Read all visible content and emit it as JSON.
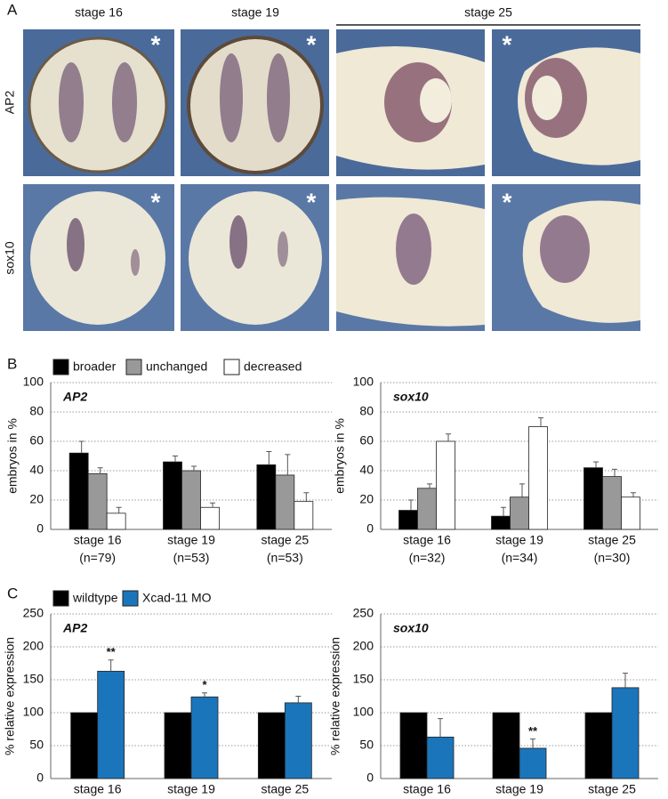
{
  "panel_labels": [
    "A",
    "B",
    "C"
  ],
  "panel_a": {
    "columns": [
      "stage 16",
      "stage 19",
      "stage 25"
    ],
    "rows": [
      "AP2",
      "sox10"
    ],
    "marker": "*"
  },
  "chart_data": [
    {
      "type": "bar",
      "subtitle": "AP2",
      "y_label": "embryos in %",
      "categories": [
        "stage 16",
        "stage 19",
        "stage 25"
      ],
      "n_labels": [
        "(n=79)",
        "(n=53)",
        "(n=53)"
      ],
      "ylim": [
        0,
        100
      ],
      "yticks": [
        0,
        20,
        40,
        60,
        80,
        100
      ],
      "grid": true,
      "series": [
        {
          "name": "broader",
          "color": "#000000",
          "values": [
            52,
            46,
            44
          ],
          "errors": [
            8,
            4,
            9
          ]
        },
        {
          "name": "unchanged",
          "color": "#999999",
          "values": [
            38,
            40,
            37
          ],
          "errors": [
            4,
            3,
            14
          ]
        },
        {
          "name": "decreased",
          "color": "#ffffff",
          "values": [
            11,
            15,
            19
          ],
          "errors": [
            4,
            3,
            6
          ]
        }
      ]
    },
    {
      "type": "bar",
      "subtitle": "sox10",
      "y_label": "embryos in %",
      "categories": [
        "stage 16",
        "stage 19",
        "stage 25"
      ],
      "n_labels": [
        "(n=32)",
        "(n=34)",
        "(n=30)"
      ],
      "ylim": [
        0,
        100
      ],
      "yticks": [
        0,
        20,
        40,
        60,
        80,
        100
      ],
      "grid": true,
      "series": [
        {
          "color": "#000000",
          "values": [
            13,
            9,
            42
          ],
          "errors": [
            7,
            6,
            4
          ]
        },
        {
          "color": "#999999",
          "values": [
            28,
            22,
            36
          ],
          "errors": [
            3,
            9,
            5
          ]
        },
        {
          "color": "#ffffff",
          "values": [
            60,
            70,
            22
          ],
          "errors": [
            5,
            6,
            3
          ]
        }
      ]
    },
    {
      "type": "bar",
      "subtitle": "AP2",
      "y_label": "% relative expression",
      "categories": [
        "stage 16",
        "stage 19",
        "stage 25"
      ],
      "ylim": [
        0,
        250
      ],
      "yticks": [
        0,
        50,
        100,
        150,
        200,
        250
      ],
      "grid": true,
      "series": [
        {
          "name": "wildtype",
          "color": "#000000",
          "values": [
            100,
            100,
            100
          ]
        },
        {
          "name": "Xcad-11 MO",
          "color": "#1b75bb",
          "values": [
            163,
            124,
            115
          ],
          "errors": [
            17,
            6,
            10
          ],
          "significance": [
            "**",
            "*",
            null
          ]
        }
      ]
    },
    {
      "type": "bar",
      "subtitle": "sox10",
      "y_label": "% relative expression",
      "categories": [
        "stage 16",
        "stage 19",
        "stage 25"
      ],
      "ylim": [
        0,
        250
      ],
      "yticks": [
        0,
        50,
        100,
        150,
        200,
        250
      ],
      "grid": true,
      "series": [
        {
          "color": "#000000",
          "values": [
            100,
            100,
            100
          ]
        },
        {
          "color": "#1b75bb",
          "values": [
            63,
            46,
            138
          ],
          "errors": [
            28,
            14,
            22
          ],
          "significance": [
            null,
            "**",
            null
          ]
        }
      ]
    }
  ]
}
